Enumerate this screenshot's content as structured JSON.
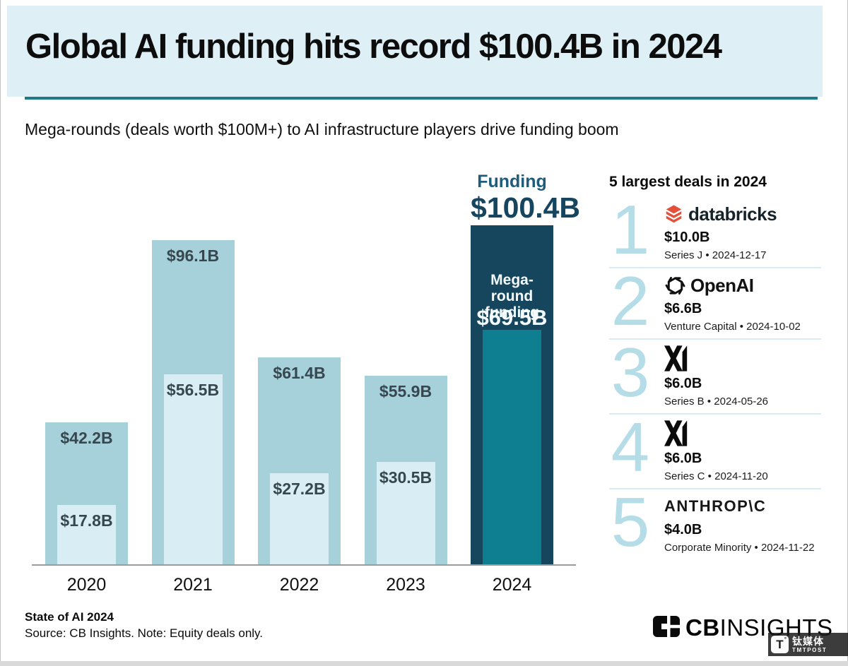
{
  "header": {
    "title": "Global AI funding hits record $100.4B in 2024",
    "subtitle": "Mega-rounds (deals worth $100M+) to AI infrastructure players drive funding boom"
  },
  "chart_data": {
    "type": "bar",
    "title": "Global AI funding hits record $100.4B in 2024",
    "unit": "USD billions",
    "categories": [
      "2020",
      "2021",
      "2022",
      "2023",
      "2024"
    ],
    "series": [
      {
        "name": "Funding",
        "values": [
          42.2,
          96.1,
          61.4,
          55.9,
          100.4
        ],
        "labels": [
          "$42.2B",
          "$96.1B",
          "$61.4B",
          "$55.9B",
          "$100.4B"
        ]
      },
      {
        "name": "Mega-round funding",
        "values": [
          17.8,
          56.5,
          27.2,
          30.5,
          69.5
        ],
        "labels": [
          "$17.8B",
          "$56.5B",
          "$27.2B",
          "$30.5B",
          "$69.5B"
        ]
      }
    ],
    "ylim": [
      0,
      105
    ],
    "grid": false,
    "highlight": {
      "category": "2024",
      "funding_label": "Funding",
      "funding_value": "$100.4B",
      "mega_label_line1": "Mega-round",
      "mega_label_line2": "funding",
      "mega_value": "$69.5B"
    }
  },
  "deals": {
    "heading": "5 largest deals in 2024",
    "items": [
      {
        "rank": "1",
        "company": "Databricks",
        "logo": "databricks-logo",
        "wordmark": "databricks",
        "amount": "$10.0B",
        "detail": "Series J • 2024-12-17"
      },
      {
        "rank": "2",
        "company": "OpenAI",
        "logo": "openai-logo",
        "wordmark": "OpenAI",
        "amount": "$6.6B",
        "detail": "Venture Capital • 2024-10-02"
      },
      {
        "rank": "3",
        "company": "xAI",
        "logo": "xai-logo",
        "wordmark": "",
        "amount": "$6.0B",
        "detail": "Series B • 2024-05-26"
      },
      {
        "rank": "4",
        "company": "xAI",
        "logo": "xai-logo",
        "wordmark": "",
        "amount": "$6.0B",
        "detail": "Series C • 2024-11-20"
      },
      {
        "rank": "5",
        "company": "Anthropic",
        "logo": "anthropic-logo",
        "wordmark": "ANTHROP\\C",
        "amount": "$4.0B",
        "detail": "Corporate Minority • 2024-11-22"
      }
    ]
  },
  "footer": {
    "report": "State of AI 2024",
    "source": "Source: CB Insights. Note: Equity deals only.",
    "brand_cb": "CB",
    "brand_insights": "INSIGHTS"
  },
  "watermark": {
    "t": "T",
    "degree": "°",
    "cn": "钛媒体",
    "en": "TMTPOST"
  },
  "colors": {
    "header_bg": "#def0f5",
    "rule_teal": "#1e7a87",
    "bar_light": "#a6d1db",
    "bar_lighter": "#d9eef4",
    "bar_dark_navy": "#15465e",
    "bar_teal": "#0e7e91",
    "value_label": "#37474f",
    "rank_blue": "#b5dde8",
    "divider_blue": "#d8edf2",
    "funding_title": "#1d5d7b",
    "funding_value": "#16455f",
    "databricks_red": "#e5503b"
  }
}
